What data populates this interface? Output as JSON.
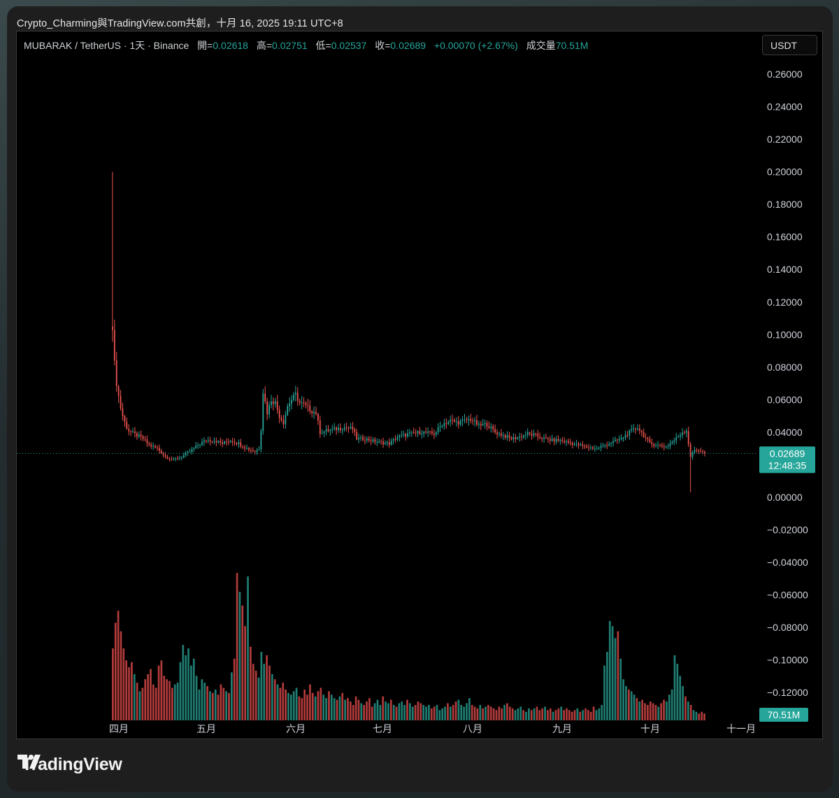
{
  "caption": "Crypto_Charming與TradingView.com共創，十月 16, 2025 19:11 UTC+8",
  "legend": {
    "symbol": "MUBARAK / TetherUS · 1天 · Binance",
    "open_label": "開=",
    "open": "0.02618",
    "high_label": "高=",
    "high": "0.02751",
    "low_label": "低=",
    "low": "0.02537",
    "close_label": "收=",
    "close": "0.02689",
    "change": "+0.00070 (+2.67%)",
    "volume_label": "成交量",
    "volume": "70.51M"
  },
  "currency_button": "USDT",
  "price_tag": {
    "price": "0.02689",
    "countdown": "12:48:35"
  },
  "volume_tag": "70.51M",
  "brand": "TradingView",
  "colors": {
    "up": "#26a69a",
    "down": "#ef5350",
    "up_volume": "#1f7d72",
    "down_volume": "#b23b3b",
    "background": "#000000",
    "axis_text": "#d1d4dc"
  },
  "chart_data": {
    "type": "candlestick",
    "y_axis_ticks": [
      "0.26000",
      "0.24000",
      "0.22000",
      "0.20000",
      "0.18000",
      "0.16000",
      "0.14000",
      "0.12000",
      "0.10000",
      "0.08000",
      "0.06000",
      "0.04000",
      "0.02000",
      "0.00000",
      "−0.02000",
      "−0.04000",
      "−0.06000",
      "−0.08000",
      "−0.10000",
      "−0.12000"
    ],
    "ylim": [
      -0.135,
      0.27
    ],
    "x_axis_labels": [
      "四月",
      "五月",
      "六月",
      "七月",
      "八月",
      "九月",
      "十月",
      "十一月"
    ],
    "last_price": 0.02689,
    "close_path": [
      [
        0,
        0.106
      ],
      [
        1,
        0.082
      ],
      [
        2,
        0.07
      ],
      [
        3,
        0.062
      ],
      [
        4,
        0.055
      ],
      [
        5,
        0.05
      ],
      [
        6,
        0.046
      ],
      [
        7,
        0.043
      ],
      [
        8,
        0.041
      ],
      [
        9,
        0.04
      ],
      [
        12,
        0.038
      ],
      [
        15,
        0.036
      ],
      [
        18,
        0.032
      ],
      [
        22,
        0.03
      ],
      [
        26,
        0.025
      ],
      [
        30,
        0.023
      ],
      [
        34,
        0.025
      ],
      [
        38,
        0.028
      ],
      [
        42,
        0.032
      ],
      [
        46,
        0.035
      ],
      [
        50,
        0.035
      ],
      [
        54,
        0.033
      ],
      [
        58,
        0.035
      ],
      [
        62,
        0.033
      ],
      [
        66,
        0.03
      ],
      [
        70,
        0.028
      ],
      [
        72,
        0.03
      ],
      [
        73,
        0.042
      ],
      [
        74,
        0.065
      ],
      [
        76,
        0.052
      ],
      [
        78,
        0.06
      ],
      [
        80,
        0.058
      ],
      [
        82,
        0.05
      ],
      [
        84,
        0.046
      ],
      [
        86,
        0.056
      ],
      [
        88,
        0.06
      ],
      [
        90,
        0.063
      ],
      [
        92,
        0.058
      ],
      [
        94,
        0.057
      ],
      [
        96,
        0.055
      ],
      [
        98,
        0.053
      ],
      [
        100,
        0.052
      ],
      [
        102,
        0.04
      ],
      [
        106,
        0.041
      ],
      [
        110,
        0.042
      ],
      [
        114,
        0.043
      ],
      [
        118,
        0.042
      ],
      [
        120,
        0.036
      ],
      [
        124,
        0.036
      ],
      [
        130,
        0.034
      ],
      [
        136,
        0.033
      ],
      [
        140,
        0.037
      ],
      [
        146,
        0.039
      ],
      [
        152,
        0.04
      ],
      [
        158,
        0.039
      ],
      [
        162,
        0.045
      ],
      [
        166,
        0.047
      ],
      [
        170,
        0.046
      ],
      [
        176,
        0.048
      ],
      [
        180,
        0.044
      ],
      [
        184,
        0.045
      ],
      [
        188,
        0.04
      ],
      [
        192,
        0.038
      ],
      [
        196,
        0.036
      ],
      [
        200,
        0.037
      ],
      [
        204,
        0.039
      ],
      [
        208,
        0.038
      ],
      [
        212,
        0.036
      ],
      [
        216,
        0.035
      ],
      [
        220,
        0.035
      ],
      [
        226,
        0.033
      ],
      [
        232,
        0.031
      ],
      [
        238,
        0.03
      ],
      [
        244,
        0.033
      ],
      [
        250,
        0.036
      ],
      [
        254,
        0.04
      ],
      [
        258,
        0.043
      ],
      [
        261,
        0.038
      ],
      [
        264,
        0.033
      ],
      [
        268,
        0.032
      ],
      [
        272,
        0.031
      ],
      [
        276,
        0.035
      ],
      [
        280,
        0.04
      ],
      [
        282,
        0.041
      ],
      [
        284,
        0.025
      ],
      [
        286,
        0.029
      ],
      [
        288,
        0.029
      ],
      [
        291,
        0.0269
      ]
    ],
    "spike_high": 0.2,
    "wick_low": 0.003,
    "volume_ylim": [
      0,
      1
    ],
    "volume_relative": [
      0.42,
      0.57,
      0.64,
      0.52,
      0.42,
      0.35,
      0.31,
      0.34,
      0.27,
      0.22,
      0.17,
      0.19,
      0.24,
      0.27,
      0.3,
      0.21,
      0.19,
      0.32,
      0.35,
      0.26,
      0.24,
      0.23,
      0.19,
      0.21,
      0.22,
      0.34,
      0.44,
      0.38,
      0.42,
      0.32,
      0.36,
      0.26,
      0.18,
      0.24,
      0.22,
      0.2,
      0.17,
      0.16,
      0.18,
      0.15,
      0.21,
      0.19,
      0.17,
      0.16,
      0.28,
      0.36,
      0.86,
      0.75,
      0.67,
      0.55,
      0.84,
      0.43,
      0.33,
      0.29,
      0.25,
      0.4,
      0.33,
      0.38,
      0.32,
      0.27,
      0.24,
      0.21,
      0.19,
      0.22,
      0.18,
      0.16,
      0.15,
      0.17,
      0.19,
      0.14,
      0.13,
      0.18,
      0.15,
      0.21,
      0.16,
      0.14,
      0.17,
      0.19,
      0.15,
      0.13,
      0.17,
      0.15,
      0.13,
      0.12,
      0.14,
      0.16,
      0.12,
      0.13,
      0.11,
      0.09,
      0.14,
      0.12,
      0.1,
      0.09,
      0.11,
      0.13,
      0.08,
      0.1,
      0.12,
      0.09,
      0.14,
      0.11,
      0.1,
      0.12,
      0.09,
      0.08,
      0.1,
      0.11,
      0.09,
      0.12,
      0.1,
      0.08,
      0.09,
      0.11,
      0.1,
      0.09,
      0.08,
      0.09,
      0.07,
      0.08,
      0.09,
      0.06,
      0.07,
      0.08,
      0.1,
      0.08,
      0.09,
      0.11,
      0.12,
      0.09,
      0.08,
      0.1,
      0.13,
      0.09,
      0.08,
      0.07,
      0.09,
      0.07,
      0.08,
      0.09,
      0.08,
      0.07,
      0.06,
      0.08,
      0.07,
      0.09,
      0.1,
      0.08,
      0.07,
      0.06,
      0.07,
      0.08,
      0.06,
      0.05,
      0.07,
      0.06,
      0.07,
      0.08,
      0.06,
      0.07,
      0.08,
      0.06,
      0.07,
      0.05,
      0.06,
      0.07,
      0.08,
      0.06,
      0.07,
      0.06,
      0.05,
      0.06,
      0.07,
      0.05,
      0.06,
      0.07,
      0.06,
      0.05,
      0.08,
      0.06,
      0.07,
      0.09,
      0.32,
      0.4,
      0.58,
      0.55,
      0.48,
      0.52,
      0.36,
      0.24,
      0.2,
      0.18,
      0.17,
      0.15,
      0.13,
      0.11,
      0.12,
      0.1,
      0.09,
      0.11,
      0.1,
      0.09,
      0.08,
      0.1,
      0.12,
      0.11,
      0.15,
      0.18,
      0.38,
      0.33,
      0.26,
      0.2,
      0.14,
      0.11,
      0.09,
      0.06,
      0.05,
      0.04,
      0.05,
      0.04
    ]
  }
}
